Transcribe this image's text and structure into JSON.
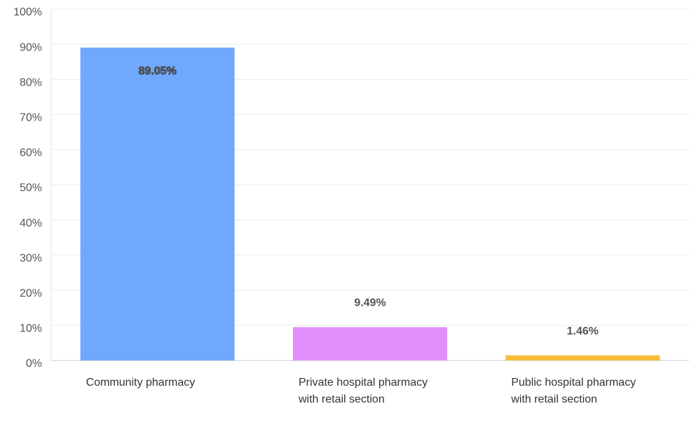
{
  "chart_data": {
    "type": "bar",
    "categories": [
      "Community pharmacy",
      "Private hospital pharmacy with retail section",
      "Public hospital pharmacy with retail section"
    ],
    "series": [
      {
        "colors": [
          "#6fa8fc",
          "#e08ffb",
          "#f5bd3a"
        ],
        "values": [
          89.05,
          9.49,
          1.46
        ],
        "value_labels": [
          "89.05%",
          "9.49%",
          "1.46%"
        ]
      }
    ],
    "ylim": [
      0,
      100
    ],
    "yticks": [
      {
        "value": 0,
        "label": "0%"
      },
      {
        "value": 10,
        "label": "10%"
      },
      {
        "value": 20,
        "label": "20%"
      },
      {
        "value": 30,
        "label": "30%"
      },
      {
        "value": 40,
        "label": "40%"
      },
      {
        "value": 50,
        "label": "50%"
      },
      {
        "value": 60,
        "label": "60%"
      },
      {
        "value": 70,
        "label": "70%"
      },
      {
        "value": 80,
        "label": "80%"
      },
      {
        "value": 90,
        "label": "90%"
      },
      {
        "value": 100,
        "label": "100%"
      }
    ],
    "grid": true
  }
}
